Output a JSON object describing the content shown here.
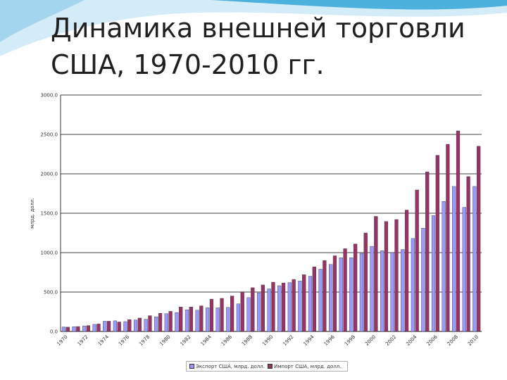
{
  "slide": {
    "title": "Динамика внешней торговли США, 1970-2010 гг."
  },
  "colors": {
    "export": "#9999ff",
    "import": "#993366",
    "gridline": "#000000",
    "accent_wave": "#29a3d6"
  },
  "chart_data": {
    "type": "bar",
    "ylabel": "млрд. долл.",
    "ylim": [
      0,
      3000
    ],
    "yticks": [
      "0.0",
      "500.0",
      "1000.0",
      "1500.0",
      "2000.0",
      "2500.0",
      "3000.0"
    ],
    "grid": true,
    "legend_position": "bottom",
    "categories": [
      "1970",
      "1971",
      "1972",
      "1973",
      "1974",
      "1975",
      "1976",
      "1977",
      "1978",
      "1979",
      "1980",
      "1981",
      "1982",
      "1983",
      "1984",
      "1985",
      "1986",
      "1987",
      "1988",
      "1989",
      "1990",
      "1991",
      "1992",
      "1993",
      "1994",
      "1995",
      "1996",
      "1997",
      "1998",
      "1999",
      "2000",
      "2001",
      "2002",
      "2003",
      "2004",
      "2005",
      "2006",
      "2007",
      "2008",
      "2009",
      "2010"
    ],
    "xtick_labels": [
      "1970",
      "1972",
      "1974",
      "1976",
      "1978",
      "1980",
      "1982",
      "1984",
      "1986",
      "1988",
      "1990",
      "1992",
      "1994",
      "1996",
      "1998",
      "2000",
      "2002",
      "2004",
      "2006",
      "2008",
      "2010"
    ],
    "series": [
      {
        "name": "Экспорт США, млрд. долл.",
        "values": [
          57,
          60,
          70,
          90,
          130,
          135,
          125,
          145,
          155,
          185,
          225,
          240,
          275,
          270,
          300,
          300,
          305,
          350,
          430,
          490,
          540,
          580,
          620,
          640,
          700,
          790,
          850,
          935,
          935,
          990,
          1080,
          1025,
          1000,
          1040,
          1180,
          1310,
          1470,
          1650,
          1840,
          1575,
          1840
        ]
      },
      {
        "name": "Импорт США, млрд. долл.",
        "values": [
          55,
          62,
          75,
          95,
          130,
          120,
          150,
          170,
          200,
          230,
          255,
          310,
          310,
          325,
          410,
          420,
          450,
          500,
          555,
          590,
          625,
          615,
          660,
          720,
          820,
          900,
          960,
          1050,
          1110,
          1250,
          1460,
          1395,
          1420,
          1540,
          1795,
          2025,
          2235,
          2375,
          2545,
          1965,
          2350
        ]
      }
    ]
  }
}
